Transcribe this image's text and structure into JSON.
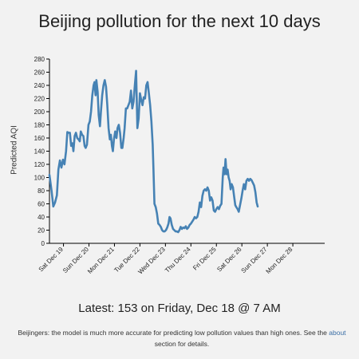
{
  "header": {
    "title": "Beijing pollution for the next 10 days"
  },
  "footer": {
    "latest": "Latest: 153 on Friday, Dec 18 @ 7 AM",
    "note_before": "Beijingers: the model is much more accurate for predicting low pollution values than high ones. See the",
    "link": "about",
    "note_after": "section for details."
  },
  "colors": {
    "line": "#4682b4",
    "axis": "#000000",
    "background": "#f2f2f2"
  },
  "chart_data": {
    "type": "line",
    "title": "Beijing pollution for the next 10 days",
    "ylabel": "Predicted AQI",
    "xlabel": "",
    "ylim": [
      0,
      280
    ],
    "yticks": [
      0,
      20,
      40,
      60,
      80,
      100,
      120,
      140,
      160,
      180,
      200,
      220,
      240,
      260,
      280
    ],
    "x_unit": "days since Sat Dec 19 00:00",
    "xlim": [
      -0.55,
      10.25
    ],
    "xticks": [
      {
        "x": 0,
        "label": "Sat Dec 19"
      },
      {
        "x": 1,
        "label": "Sun Dec 20"
      },
      {
        "x": 2,
        "label": "Mon Dec 21"
      },
      {
        "x": 3,
        "label": "Tue Dec 22"
      },
      {
        "x": 4,
        "label": "Wed Dec 23"
      },
      {
        "x": 5,
        "label": "Thu Dec 24"
      },
      {
        "x": 6,
        "label": "Fri Dec 25"
      },
      {
        "x": 7,
        "label": "Sat Dec 26"
      },
      {
        "x": 8,
        "label": "Sun Dec 27"
      },
      {
        "x": 9,
        "label": "Mon Dec 28"
      }
    ],
    "grid": false,
    "legend": "none",
    "series": [
      {
        "name": "Predicted AQI",
        "points": [
          [
            -0.55,
            104
          ],
          [
            -0.47,
            80
          ],
          [
            -0.4,
            56
          ],
          [
            -0.33,
            62
          ],
          [
            -0.26,
            73
          ],
          [
            -0.2,
            112
          ],
          [
            -0.14,
            126
          ],
          [
            -0.08,
            115
          ],
          [
            -0.02,
            127
          ],
          [
            0.04,
            120
          ],
          [
            0.1,
            140
          ],
          [
            0.15,
            169
          ],
          [
            0.2,
            168
          ],
          [
            0.25,
            168
          ],
          [
            0.3,
            148
          ],
          [
            0.35,
            152
          ],
          [
            0.39,
            140
          ],
          [
            0.44,
            163
          ],
          [
            0.49,
            168
          ],
          [
            0.54,
            160
          ],
          [
            0.59,
            158
          ],
          [
            0.64,
            155
          ],
          [
            0.68,
            170
          ],
          [
            0.73,
            165
          ],
          [
            0.78,
            163
          ],
          [
            0.83,
            148
          ],
          [
            0.87,
            145
          ],
          [
            0.92,
            150
          ],
          [
            0.98,
            180
          ],
          [
            1.03,
            185
          ],
          [
            1.08,
            200
          ],
          [
            1.13,
            225
          ],
          [
            1.18,
            240
          ],
          [
            1.22,
            245
          ],
          [
            1.26,
            225
          ],
          [
            1.29,
            248
          ],
          [
            1.34,
            230
          ],
          [
            1.38,
            195
          ],
          [
            1.43,
            178
          ],
          [
            1.47,
            200
          ],
          [
            1.52,
            225
          ],
          [
            1.57,
            240
          ],
          [
            1.62,
            248
          ],
          [
            1.67,
            238
          ],
          [
            1.72,
            210
          ],
          [
            1.77,
            175
          ],
          [
            1.82,
            158
          ],
          [
            1.86,
            165
          ],
          [
            1.9,
            148
          ],
          [
            1.94,
            140
          ],
          [
            1.98,
            158
          ],
          [
            2.03,
            170
          ],
          [
            2.08,
            160
          ],
          [
            2.12,
            175
          ],
          [
            2.17,
            180
          ],
          [
            2.22,
            168
          ],
          [
            2.27,
            145
          ],
          [
            2.31,
            145
          ],
          [
            2.36,
            160
          ],
          [
            2.4,
            175
          ],
          [
            2.45,
            205
          ],
          [
            2.5,
            205
          ],
          [
            2.55,
            210
          ],
          [
            2.6,
            215
          ],
          [
            2.65,
            232
          ],
          [
            2.7,
            205
          ],
          [
            2.75,
            215
          ],
          [
            2.8,
            240
          ],
          [
            2.85,
            262
          ],
          [
            2.9,
            175
          ],
          [
            2.95,
            190
          ],
          [
            3.0,
            228
          ],
          [
            3.05,
            218
          ],
          [
            3.1,
            210
          ],
          [
            3.15,
            222
          ],
          [
            3.2,
            220
          ],
          [
            3.25,
            240
          ],
          [
            3.3,
            245
          ],
          [
            3.35,
            228
          ],
          [
            3.4,
            210
          ],
          [
            3.45,
            185
          ],
          [
            3.5,
            150
          ],
          [
            3.53,
            115
          ],
          [
            3.57,
            60
          ],
          [
            3.62,
            55
          ],
          [
            3.67,
            45
          ],
          [
            3.72,
            30
          ],
          [
            3.77,
            28
          ],
          [
            3.82,
            25
          ],
          [
            3.87,
            20
          ],
          [
            3.92,
            18
          ],
          [
            3.97,
            18
          ],
          [
            4.02,
            20
          ],
          [
            4.07,
            24
          ],
          [
            4.12,
            30
          ],
          [
            4.16,
            40
          ],
          [
            4.2,
            38
          ],
          [
            4.25,
            28
          ],
          [
            4.3,
            22
          ],
          [
            4.35,
            20
          ],
          [
            4.4,
            18
          ],
          [
            4.45,
            18
          ],
          [
            4.5,
            17
          ],
          [
            4.55,
            20
          ],
          [
            4.6,
            25
          ],
          [
            4.65,
            22
          ],
          [
            4.7,
            24
          ],
          [
            4.75,
            23
          ],
          [
            4.8,
            26
          ],
          [
            4.85,
            22
          ],
          [
            4.9,
            24
          ],
          [
            4.95,
            28
          ],
          [
            5.0,
            30
          ],
          [
            5.05,
            33
          ],
          [
            5.1,
            36
          ],
          [
            5.15,
            40
          ],
          [
            5.2,
            38
          ],
          [
            5.25,
            40
          ],
          [
            5.3,
            48
          ],
          [
            5.35,
            62
          ],
          [
            5.4,
            55
          ],
          [
            5.45,
            72
          ],
          [
            5.5,
            80
          ],
          [
            5.55,
            82
          ],
          [
            5.6,
            80
          ],
          [
            5.65,
            85
          ],
          [
            5.7,
            80
          ],
          [
            5.75,
            65
          ],
          [
            5.8,
            70
          ],
          [
            5.85,
            65
          ],
          [
            5.9,
            50
          ],
          [
            5.95,
            48
          ],
          [
            6.0,
            52
          ],
          [
            6.05,
            55
          ],
          [
            6.1,
            52
          ],
          [
            6.15,
            57
          ],
          [
            6.2,
            60
          ],
          [
            6.25,
            100
          ],
          [
            6.28,
            115
          ],
          [
            6.32,
            105
          ],
          [
            6.36,
            128
          ],
          [
            6.4,
            105
          ],
          [
            6.44,
            112
          ],
          [
            6.48,
            100
          ],
          [
            6.52,
            95
          ],
          [
            6.56,
            82
          ],
          [
            6.6,
            90
          ],
          [
            6.65,
            85
          ],
          [
            6.7,
            70
          ],
          [
            6.74,
            58
          ],
          [
            6.78,
            55
          ],
          [
            6.83,
            52
          ],
          [
            6.88,
            48
          ],
          [
            6.93,
            58
          ],
          [
            6.98,
            68
          ],
          [
            7.03,
            80
          ],
          [
            7.08,
            90
          ],
          [
            7.13,
            82
          ],
          [
            7.18,
            95
          ],
          [
            7.23,
            98
          ],
          [
            7.28,
            95
          ],
          [
            7.33,
            98
          ],
          [
            7.38,
            96
          ],
          [
            7.43,
            92
          ],
          [
            7.48,
            88
          ],
          [
            7.53,
            78
          ],
          [
            7.58,
            62
          ],
          [
            7.62,
            56
          ]
        ]
      }
    ]
  }
}
